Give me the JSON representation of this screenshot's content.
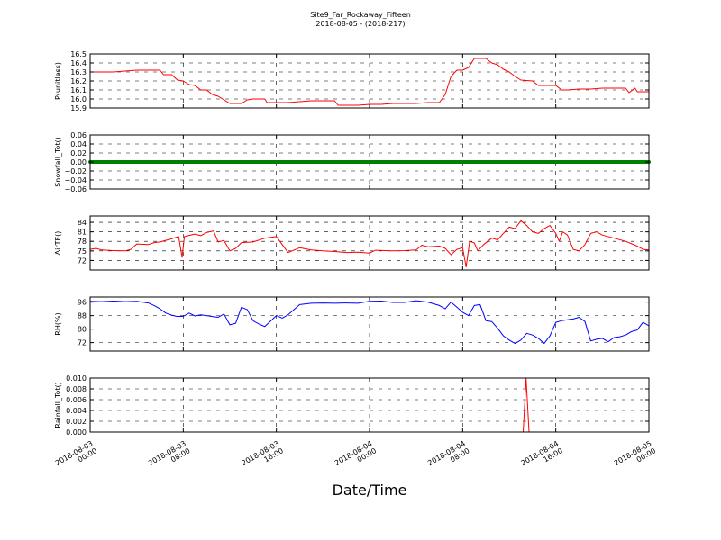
{
  "chart_data": {
    "type": "line",
    "title": "Site9_Far_Rockaway_Fifteen",
    "subtitle": "2018-08-05 - (2018-217)",
    "xlabel": "Date/Time",
    "x_tick_labels": [
      [
        "2018-08-03",
        "00:00"
      ],
      [
        "2018-08-03",
        "08:00"
      ],
      [
        "2018-08-03",
        "16:00"
      ],
      [
        "2018-08-04",
        "00:00"
      ],
      [
        "2018-08-04",
        "08:00"
      ],
      [
        "2018-08-04",
        "16:00"
      ],
      [
        "2018-08-05",
        "00:00"
      ]
    ],
    "xlim_hours": [
      0,
      48
    ],
    "grid": true,
    "panels": [
      {
        "ylabel": "P(unitless)",
        "color": "#ff0000",
        "ylim": [
          15.9,
          16.5
        ],
        "yticks": [
          15.9,
          16.0,
          16.1,
          16.2,
          16.3,
          16.4,
          16.5
        ],
        "ytick_labels": [
          "15.9",
          "16.0",
          "16.1",
          "16.2",
          "16.3",
          "16.4",
          "16.5"
        ],
        "series": [
          {
            "x": 0,
            "y": 16.3
          },
          {
            "x": 1,
            "y": 16.3
          },
          {
            "x": 2,
            "y": 16.3
          },
          {
            "x": 3,
            "y": 16.31
          },
          {
            "x": 4,
            "y": 16.32
          },
          {
            "x": 5,
            "y": 16.32
          },
          {
            "x": 6,
            "y": 16.32
          },
          {
            "x": 6.3,
            "y": 16.27
          },
          {
            "x": 7,
            "y": 16.27
          },
          {
            "x": 7.5,
            "y": 16.21
          },
          {
            "x": 8,
            "y": 16.2
          },
          {
            "x": 8.5,
            "y": 16.16
          },
          {
            "x": 9,
            "y": 16.15
          },
          {
            "x": 9.5,
            "y": 16.1
          },
          {
            "x": 10,
            "y": 16.1
          },
          {
            "x": 10.5,
            "y": 16.05
          },
          {
            "x": 11,
            "y": 16.03
          },
          {
            "x": 11.5,
            "y": 15.99
          },
          {
            "x": 12,
            "y": 15.95
          },
          {
            "x": 13,
            "y": 15.95
          },
          {
            "x": 13.5,
            "y": 15.99
          },
          {
            "x": 14,
            "y": 16.0
          },
          {
            "x": 15,
            "y": 16.0
          },
          {
            "x": 15.2,
            "y": 15.96
          },
          {
            "x": 16,
            "y": 15.96
          },
          {
            "x": 17,
            "y": 15.96
          },
          {
            "x": 18,
            "y": 15.97
          },
          {
            "x": 19,
            "y": 15.98
          },
          {
            "x": 20,
            "y": 15.98
          },
          {
            "x": 21,
            "y": 15.98
          },
          {
            "x": 21.3,
            "y": 15.93
          },
          {
            "x": 22,
            "y": 15.93
          },
          {
            "x": 23,
            "y": 15.93
          },
          {
            "x": 24,
            "y": 15.94
          },
          {
            "x": 25,
            "y": 15.94
          },
          {
            "x": 26,
            "y": 15.95
          },
          {
            "x": 27,
            "y": 15.95
          },
          {
            "x": 28,
            "y": 15.95
          },
          {
            "x": 29,
            "y": 15.96
          },
          {
            "x": 30,
            "y": 15.96
          },
          {
            "x": 30.5,
            "y": 16.05
          },
          {
            "x": 31,
            "y": 16.25
          },
          {
            "x": 31.5,
            "y": 16.32
          },
          {
            "x": 32,
            "y": 16.32
          },
          {
            "x": 32.5,
            "y": 16.35
          },
          {
            "x": 33,
            "y": 16.45
          },
          {
            "x": 34,
            "y": 16.45
          },
          {
            "x": 34.5,
            "y": 16.4
          },
          {
            "x": 35,
            "y": 16.38
          },
          {
            "x": 35.5,
            "y": 16.33
          },
          {
            "x": 36,
            "y": 16.3
          },
          {
            "x": 36.5,
            "y": 16.25
          },
          {
            "x": 37,
            "y": 16.21
          },
          {
            "x": 38,
            "y": 16.2
          },
          {
            "x": 38.5,
            "y": 16.15
          },
          {
            "x": 39,
            "y": 16.15
          },
          {
            "x": 40,
            "y": 16.15
          },
          {
            "x": 40.5,
            "y": 16.1
          },
          {
            "x": 41,
            "y": 16.1
          },
          {
            "x": 42,
            "y": 16.11
          },
          {
            "x": 43,
            "y": 16.11
          },
          {
            "x": 44,
            "y": 16.12
          },
          {
            "x": 45,
            "y": 16.12
          },
          {
            "x": 46,
            "y": 16.12
          },
          {
            "x": 46.3,
            "y": 16.07
          },
          {
            "x": 46.8,
            "y": 16.12
          },
          {
            "x": 47,
            "y": 16.08
          },
          {
            "x": 48,
            "y": 16.08
          }
        ]
      },
      {
        "ylabel": "Snowfall_Tot()",
        "color": "#008000",
        "ylim": [
          -0.06,
          0.06
        ],
        "yticks": [
          -0.06,
          -0.04,
          -0.02,
          0.0,
          0.02,
          0.04,
          0.06
        ],
        "ytick_labels": [
          "−0.06",
          "−0.04",
          "−0.02",
          "0.00",
          "0.02",
          "0.04",
          "0.06"
        ],
        "series": [
          {
            "x": 0,
            "y": 0.0
          },
          {
            "x": 48,
            "y": 0.0
          }
        ]
      },
      {
        "ylabel": "AirTF()",
        "color": "#ff0000",
        "ylim": [
          69,
          86
        ],
        "yticks": [
          72,
          75,
          78,
          81,
          84
        ],
        "ytick_labels": [
          "72",
          "75",
          "78",
          "81",
          "84"
        ],
        "series": [
          {
            "x": 0,
            "y": 75.5
          },
          {
            "x": 0.5,
            "y": 75.8
          },
          {
            "x": 1,
            "y": 75.3
          },
          {
            "x": 2,
            "y": 75.1
          },
          {
            "x": 3,
            "y": 75.0
          },
          {
            "x": 3.5,
            "y": 75.5
          },
          {
            "x": 4,
            "y": 77.2
          },
          {
            "x": 5,
            "y": 77.0
          },
          {
            "x": 5.5,
            "y": 77.6
          },
          {
            "x": 6,
            "y": 77.8
          },
          {
            "x": 7,
            "y": 78.8
          },
          {
            "x": 7.6,
            "y": 79.5
          },
          {
            "x": 7.9,
            "y": 73.0
          },
          {
            "x": 8.1,
            "y": 79.5
          },
          {
            "x": 9,
            "y": 80.3
          },
          {
            "x": 9.5,
            "y": 79.8
          },
          {
            "x": 10,
            "y": 80.8
          },
          {
            "x": 10.6,
            "y": 81.3
          },
          {
            "x": 11,
            "y": 77.8
          },
          {
            "x": 11.5,
            "y": 78.3
          },
          {
            "x": 12,
            "y": 75.0
          },
          {
            "x": 12.5,
            "y": 75.8
          },
          {
            "x": 13,
            "y": 77.6
          },
          {
            "x": 14,
            "y": 77.8
          },
          {
            "x": 15,
            "y": 79.0
          },
          {
            "x": 16,
            "y": 79.5
          },
          {
            "x": 16.5,
            "y": 77.0
          },
          {
            "x": 17,
            "y": 74.5
          },
          {
            "x": 18,
            "y": 76.0
          },
          {
            "x": 19,
            "y": 75.3
          },
          {
            "x": 20,
            "y": 75.0
          },
          {
            "x": 21,
            "y": 74.8
          },
          {
            "x": 22,
            "y": 74.5
          },
          {
            "x": 23,
            "y": 74.6
          },
          {
            "x": 24,
            "y": 74.3
          },
          {
            "x": 24.5,
            "y": 75.2
          },
          {
            "x": 26,
            "y": 75.0
          },
          {
            "x": 27,
            "y": 75.1
          },
          {
            "x": 28,
            "y": 75.3
          },
          {
            "x": 28.5,
            "y": 76.8
          },
          {
            "x": 29,
            "y": 76.3
          },
          {
            "x": 30,
            "y": 76.5
          },
          {
            "x": 30.5,
            "y": 75.8
          },
          {
            "x": 31,
            "y": 73.8
          },
          {
            "x": 31.5,
            "y": 75.5
          },
          {
            "x": 32,
            "y": 76.0
          },
          {
            "x": 32.3,
            "y": 70.0
          },
          {
            "x": 32.6,
            "y": 78.0
          },
          {
            "x": 33,
            "y": 77.5
          },
          {
            "x": 33.3,
            "y": 75.0
          },
          {
            "x": 33.8,
            "y": 77.0
          },
          {
            "x": 34.5,
            "y": 79.0
          },
          {
            "x": 35,
            "y": 78.5
          },
          {
            "x": 35.5,
            "y": 80.5
          },
          {
            "x": 36,
            "y": 82.5
          },
          {
            "x": 36.5,
            "y": 82.0
          },
          {
            "x": 37,
            "y": 84.5
          },
          {
            "x": 37.5,
            "y": 83.0
          },
          {
            "x": 38,
            "y": 81.0
          },
          {
            "x": 38.5,
            "y": 80.5
          },
          {
            "x": 39,
            "y": 82.0
          },
          {
            "x": 39.5,
            "y": 83.0
          },
          {
            "x": 40,
            "y": 80.5
          },
          {
            "x": 40.3,
            "y": 78.0
          },
          {
            "x": 40.6,
            "y": 81.0
          },
          {
            "x": 41,
            "y": 80.0
          },
          {
            "x": 41.5,
            "y": 75.5
          },
          {
            "x": 42,
            "y": 75.0
          },
          {
            "x": 42.5,
            "y": 77.0
          },
          {
            "x": 43,
            "y": 80.5
          },
          {
            "x": 43.5,
            "y": 81.0
          },
          {
            "x": 44,
            "y": 80.0
          },
          {
            "x": 45,
            "y": 79.0
          },
          {
            "x": 46,
            "y": 78.0
          },
          {
            "x": 47,
            "y": 76.5
          },
          {
            "x": 47.5,
            "y": 75.5
          },
          {
            "x": 48,
            "y": 75.3
          }
        ]
      },
      {
        "ylabel": "RH(%)",
        "color": "#0000ff",
        "ylim": [
          67,
          99
        ],
        "yticks": [
          72,
          80,
          88,
          96
        ],
        "ytick_labels": [
          "72",
          "80",
          "88",
          "96"
        ],
        "series": [
          {
            "x": 0,
            "y": 96.5
          },
          {
            "x": 1,
            "y": 96.3
          },
          {
            "x": 2,
            "y": 96.6
          },
          {
            "x": 3,
            "y": 96.3
          },
          {
            "x": 4,
            "y": 96.5
          },
          {
            "x": 5,
            "y": 95.5
          },
          {
            "x": 5.5,
            "y": 94.0
          },
          {
            "x": 6,
            "y": 92.0
          },
          {
            "x": 6.5,
            "y": 89.5
          },
          {
            "x": 7,
            "y": 88.3
          },
          {
            "x": 7.5,
            "y": 87.5
          },
          {
            "x": 8,
            "y": 87.6
          },
          {
            "x": 8.5,
            "y": 89.5
          },
          {
            "x": 9,
            "y": 87.8
          },
          {
            "x": 9.5,
            "y": 88.5
          },
          {
            "x": 10,
            "y": 88.0
          },
          {
            "x": 10.5,
            "y": 87.5
          },
          {
            "x": 11,
            "y": 87.0
          },
          {
            "x": 11.5,
            "y": 89.0
          },
          {
            "x": 12,
            "y": 82.5
          },
          {
            "x": 12.5,
            "y": 83.5
          },
          {
            "x": 13,
            "y": 93.0
          },
          {
            "x": 13.5,
            "y": 91.5
          },
          {
            "x": 14,
            "y": 85.0
          },
          {
            "x": 14.5,
            "y": 83.0
          },
          {
            "x": 15,
            "y": 81.5
          },
          {
            "x": 16,
            "y": 88.0
          },
          {
            "x": 16.5,
            "y": 86.5
          },
          {
            "x": 17,
            "y": 88.5
          },
          {
            "x": 18,
            "y": 94.5
          },
          {
            "x": 19,
            "y": 95.3
          },
          {
            "x": 20,
            "y": 95.5
          },
          {
            "x": 21,
            "y": 95.3
          },
          {
            "x": 22,
            "y": 95.5
          },
          {
            "x": 23,
            "y": 95.3
          },
          {
            "x": 24,
            "y": 96.5
          },
          {
            "x": 25,
            "y": 96.6
          },
          {
            "x": 26,
            "y": 95.8
          },
          {
            "x": 27,
            "y": 95.8
          },
          {
            "x": 28,
            "y": 96.8
          },
          {
            "x": 29,
            "y": 96.0
          },
          {
            "x": 30,
            "y": 94.0
          },
          {
            "x": 30.5,
            "y": 92.0
          },
          {
            "x": 31,
            "y": 96.0
          },
          {
            "x": 31.5,
            "y": 93.0
          },
          {
            "x": 32,
            "y": 90.0
          },
          {
            "x": 32.5,
            "y": 88.0
          },
          {
            "x": 33,
            "y": 94.0
          },
          {
            "x": 33.5,
            "y": 94.5
          },
          {
            "x": 34,
            "y": 85.0
          },
          {
            "x": 34.5,
            "y": 84.5
          },
          {
            "x": 35,
            "y": 80.5
          },
          {
            "x": 35.5,
            "y": 76.0
          },
          {
            "x": 36,
            "y": 73.5
          },
          {
            "x": 36.5,
            "y": 71.5
          },
          {
            "x": 37,
            "y": 73.5
          },
          {
            "x": 37.5,
            "y": 77.5
          },
          {
            "x": 38,
            "y": 76.5
          },
          {
            "x": 38.5,
            "y": 74.5
          },
          {
            "x": 39,
            "y": 71.5
          },
          {
            "x": 39.5,
            "y": 76.0
          },
          {
            "x": 40,
            "y": 84.0
          },
          {
            "x": 40.5,
            "y": 85.0
          },
          {
            "x": 41,
            "y": 85.5
          },
          {
            "x": 41.5,
            "y": 86.0
          },
          {
            "x": 42,
            "y": 87.0
          },
          {
            "x": 42.5,
            "y": 84.5
          },
          {
            "x": 43,
            "y": 73.0
          },
          {
            "x": 43.5,
            "y": 74.0
          },
          {
            "x": 44,
            "y": 74.5
          },
          {
            "x": 44.5,
            "y": 72.5
          },
          {
            "x": 45,
            "y": 75.0
          },
          {
            "x": 45.5,
            "y": 75.5
          },
          {
            "x": 46,
            "y": 76.5
          },
          {
            "x": 46.5,
            "y": 78.5
          },
          {
            "x": 47,
            "y": 79.5
          },
          {
            "x": 47.5,
            "y": 84.0
          },
          {
            "x": 48,
            "y": 82.0
          }
        ]
      },
      {
        "ylabel": "Rainfall_Tot()",
        "color": "#ff0000",
        "ylim": [
          0.0,
          0.01
        ],
        "yticks": [
          0.0,
          0.002,
          0.004,
          0.006,
          0.008,
          0.01
        ],
        "ytick_labels": [
          "0.000",
          "0.002",
          "0.004",
          "0.006",
          "0.008",
          "0.010"
        ],
        "series": [
          {
            "x": 0,
            "y": 0.0
          },
          {
            "x": 37.2,
            "y": 0.0
          },
          {
            "x": 37.45,
            "y": 0.01
          },
          {
            "x": 37.7,
            "y": 0.0
          },
          {
            "x": 48,
            "y": 0.0
          }
        ]
      }
    ]
  }
}
